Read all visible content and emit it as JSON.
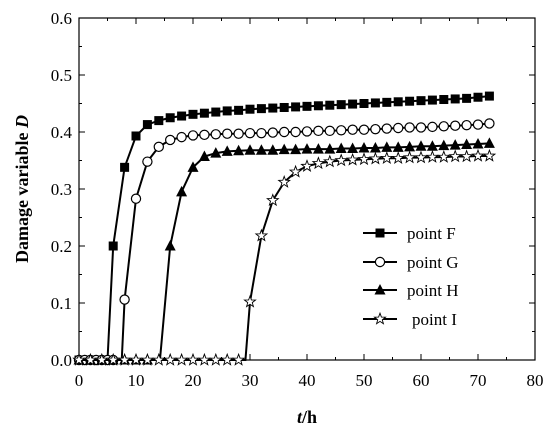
{
  "chart_data": {
    "type": "line",
    "xlabel_italic": "t",
    "xlabel_rest": "/h",
    "ylabel_text": "Damage variable ",
    "ylabel_italic": "D",
    "xlim": [
      0,
      80
    ],
    "ylim": [
      0,
      0.6
    ],
    "xticks": [
      "0",
      "10",
      "20",
      "30",
      "40",
      "50",
      "60",
      "70",
      "80"
    ],
    "yticks": [
      "0.0",
      "0.1",
      "0.2",
      "0.3",
      "0.4",
      "0.5",
      "0.6"
    ],
    "grid": false,
    "legend_position": "right-center",
    "series": [
      {
        "name": "point F",
        "marker": "filled-square",
        "onset": 5.0,
        "points": [
          [
            0,
            0
          ],
          [
            1,
            0
          ],
          [
            2,
            0
          ],
          [
            3,
            0
          ],
          [
            4,
            0
          ],
          [
            5,
            0
          ],
          [
            6,
            0.2
          ],
          [
            8,
            0.338
          ],
          [
            10,
            0.393
          ],
          [
            12,
            0.413
          ],
          [
            14,
            0.42
          ],
          [
            16,
            0.425
          ],
          [
            18,
            0.428
          ],
          [
            20,
            0.431
          ],
          [
            22,
            0.433
          ],
          [
            24,
            0.435
          ],
          [
            26,
            0.437
          ],
          [
            28,
            0.438
          ],
          [
            30,
            0.44
          ],
          [
            32,
            0.441
          ],
          [
            34,
            0.442
          ],
          [
            36,
            0.443
          ],
          [
            38,
            0.444
          ],
          [
            40,
            0.445
          ],
          [
            42,
            0.446
          ],
          [
            44,
            0.447
          ],
          [
            46,
            0.448
          ],
          [
            48,
            0.449
          ],
          [
            50,
            0.45
          ],
          [
            52,
            0.451
          ],
          [
            54,
            0.452
          ],
          [
            56,
            0.453
          ],
          [
            58,
            0.454
          ],
          [
            60,
            0.455
          ],
          [
            62,
            0.456
          ],
          [
            64,
            0.457
          ],
          [
            66,
            0.458
          ],
          [
            68,
            0.459
          ],
          [
            70,
            0.461
          ],
          [
            72,
            0.463
          ]
        ]
      },
      {
        "name": "point G",
        "marker": "open-circle",
        "onset": 7.5,
        "points": [
          [
            0,
            0
          ],
          [
            1,
            0
          ],
          [
            2,
            0
          ],
          [
            3,
            0
          ],
          [
            4,
            0
          ],
          [
            5,
            0
          ],
          [
            6,
            0
          ],
          [
            7.5,
            0
          ],
          [
            8,
            0.106
          ],
          [
            10,
            0.283
          ],
          [
            12,
            0.348
          ],
          [
            14,
            0.374
          ],
          [
            16,
            0.386
          ],
          [
            18,
            0.391
          ],
          [
            20,
            0.394
          ],
          [
            22,
            0.395
          ],
          [
            24,
            0.396
          ],
          [
            26,
            0.397
          ],
          [
            28,
            0.397
          ],
          [
            30,
            0.398
          ],
          [
            32,
            0.398
          ],
          [
            34,
            0.399
          ],
          [
            36,
            0.4
          ],
          [
            38,
            0.4
          ],
          [
            40,
            0.401
          ],
          [
            42,
            0.402
          ],
          [
            44,
            0.402
          ],
          [
            46,
            0.403
          ],
          [
            48,
            0.404
          ],
          [
            50,
            0.404
          ],
          [
            52,
            0.405
          ],
          [
            54,
            0.406
          ],
          [
            56,
            0.407
          ],
          [
            58,
            0.408
          ],
          [
            60,
            0.408
          ],
          [
            62,
            0.409
          ],
          [
            64,
            0.41
          ],
          [
            66,
            0.411
          ],
          [
            68,
            0.412
          ],
          [
            70,
            0.413
          ],
          [
            72,
            0.415
          ]
        ]
      },
      {
        "name": "point H",
        "marker": "filled-triangle",
        "onset": 14.2,
        "points": [
          [
            0,
            0
          ],
          [
            2,
            0
          ],
          [
            4,
            0
          ],
          [
            6,
            0
          ],
          [
            8,
            0
          ],
          [
            10,
            0
          ],
          [
            12,
            0
          ],
          [
            14.2,
            0
          ],
          [
            16,
            0.2
          ],
          [
            18,
            0.295
          ],
          [
            20,
            0.338
          ],
          [
            22,
            0.357
          ],
          [
            24,
            0.363
          ],
          [
            26,
            0.366
          ],
          [
            28,
            0.367
          ],
          [
            30,
            0.368
          ],
          [
            32,
            0.368
          ],
          [
            34,
            0.368
          ],
          [
            36,
            0.369
          ],
          [
            38,
            0.369
          ],
          [
            40,
            0.37
          ],
          [
            42,
            0.37
          ],
          [
            44,
            0.37
          ],
          [
            46,
            0.371
          ],
          [
            48,
            0.371
          ],
          [
            50,
            0.372
          ],
          [
            52,
            0.372
          ],
          [
            54,
            0.373
          ],
          [
            56,
            0.373
          ],
          [
            58,
            0.374
          ],
          [
            60,
            0.375
          ],
          [
            62,
            0.375
          ],
          [
            64,
            0.376
          ],
          [
            66,
            0.377
          ],
          [
            68,
            0.378
          ],
          [
            70,
            0.379
          ],
          [
            72,
            0.38
          ]
        ]
      },
      {
        "name": "point I",
        "marker": "open-star",
        "onset": 29.2,
        "points": [
          [
            0,
            0
          ],
          [
            2,
            0
          ],
          [
            4,
            0
          ],
          [
            6,
            0
          ],
          [
            8,
            0
          ],
          [
            10,
            0
          ],
          [
            12,
            0
          ],
          [
            14,
            0
          ],
          [
            16,
            0
          ],
          [
            18,
            0
          ],
          [
            20,
            0
          ],
          [
            22,
            0
          ],
          [
            24,
            0
          ],
          [
            26,
            0
          ],
          [
            28,
            0
          ],
          [
            29.2,
            0
          ],
          [
            30,
            0.102
          ],
          [
            32,
            0.218
          ],
          [
            34,
            0.28
          ],
          [
            36,
            0.312
          ],
          [
            38,
            0.33
          ],
          [
            40,
            0.34
          ],
          [
            42,
            0.345
          ],
          [
            44,
            0.348
          ],
          [
            46,
            0.35
          ],
          [
            48,
            0.351
          ],
          [
            50,
            0.352
          ],
          [
            52,
            0.353
          ],
          [
            54,
            0.354
          ],
          [
            56,
            0.354
          ],
          [
            58,
            0.355
          ],
          [
            60,
            0.355
          ],
          [
            62,
            0.356
          ],
          [
            64,
            0.356
          ],
          [
            66,
            0.357
          ],
          [
            68,
            0.357
          ],
          [
            70,
            0.358
          ],
          [
            72,
            0.358
          ]
        ]
      }
    ]
  }
}
